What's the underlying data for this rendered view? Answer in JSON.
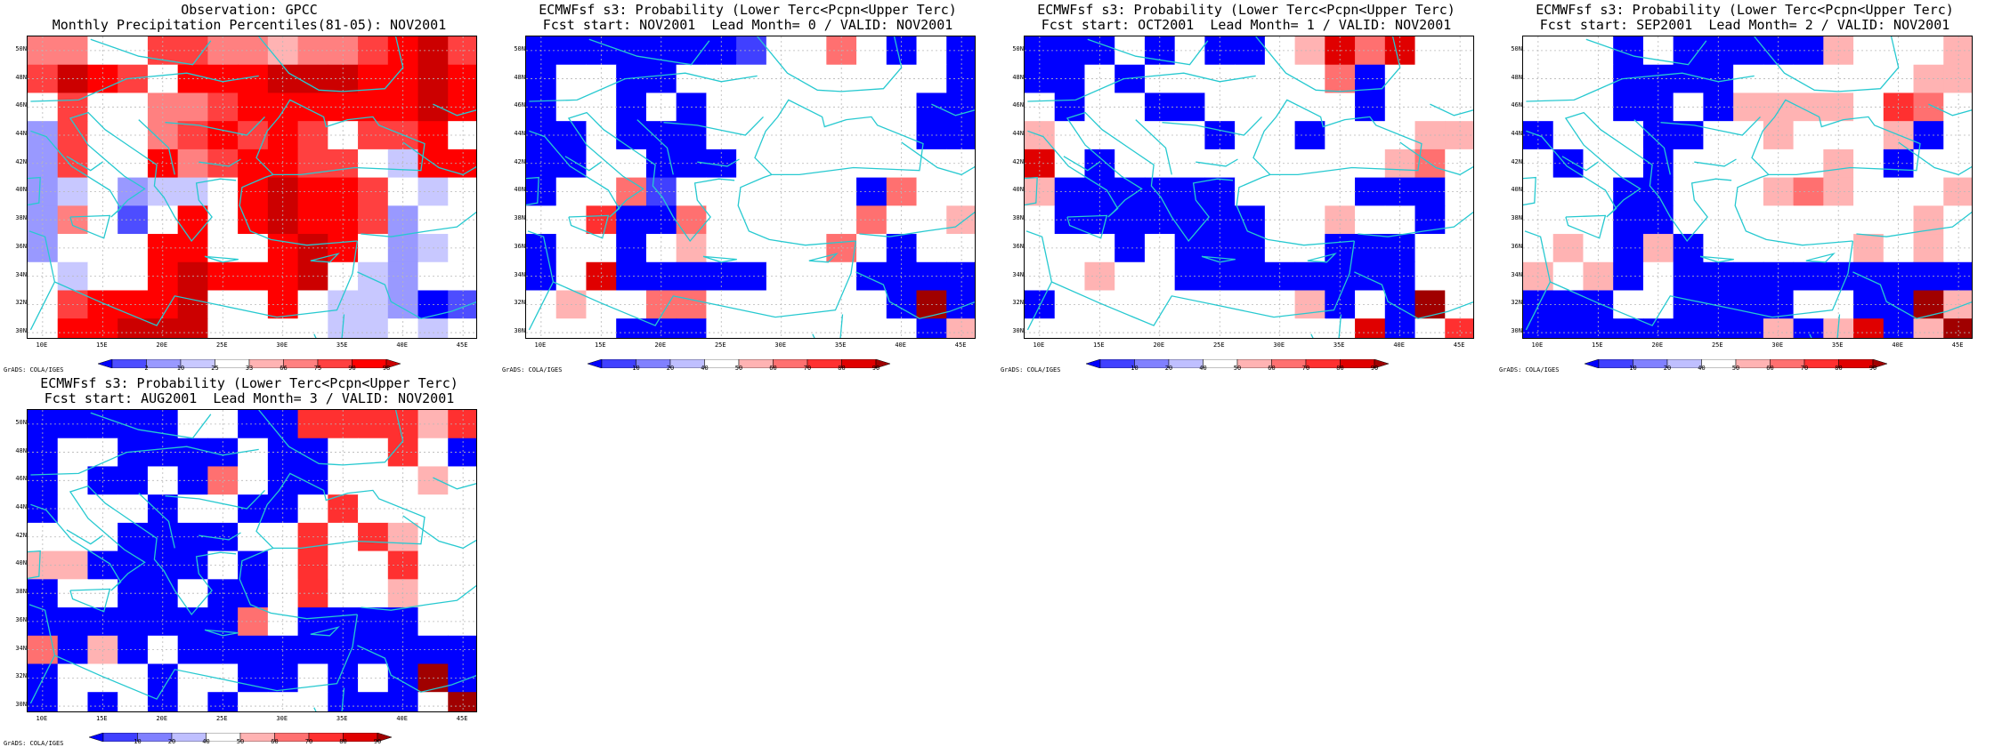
{
  "palette": {
    "ocean_coast": "#27c9d0",
    "grid": "#b8b8b8",
    "obs_scale": [
      "#0000ff",
      "#4d4dff",
      "#9999ff",
      "#c8c8ff",
      "#ffffff",
      "#ffb3b3",
      "#ff8080",
      "#ff4040",
      "#ff0000",
      "#cc0000"
    ],
    "prob_scale": [
      "#0000ff",
      "#4040ff",
      "#8080ff",
      "#bfbfff",
      "#ffffff",
      "#ffb3b3",
      "#ff7070",
      "#ff3030",
      "#e00000",
      "#a00000"
    ]
  },
  "credit": "GrADS: COLA/IGES",
  "axes": {
    "lat_labels": [
      "30N",
      "32N",
      "34N",
      "36N",
      "38N",
      "40N",
      "42N",
      "44N",
      "46N",
      "48N",
      "50N"
    ],
    "lon_labels": [
      "10E",
      "15E",
      "20E",
      "25E",
      "30E",
      "35E",
      "40E",
      "45E"
    ]
  },
  "chart_data": [
    {
      "type": "heatmap",
      "title": "Observation: GPCC",
      "subtitle": "Monthly Precipitation Percentiles(81-05): NOV2001",
      "x_range": [
        8.75,
        46.25
      ],
      "y_range": [
        29.5,
        51.0
      ],
      "colorbar_labels": [
        "2",
        "10",
        "25",
        "33",
        "66",
        "75",
        "90",
        "98"
      ],
      "scale": "obs",
      "grid": [
        [
          6,
          6,
          4,
          4,
          7,
          7,
          6,
          6,
          5,
          6,
          6,
          7,
          8,
          9,
          7
        ],
        [
          7,
          9,
          8,
          7,
          4,
          8,
          8,
          8,
          9,
          9,
          9,
          8,
          8,
          9,
          8
        ],
        [
          4,
          7,
          4,
          4,
          6,
          6,
          7,
          8,
          8,
          8,
          8,
          8,
          8,
          9,
          8
        ],
        [
          2,
          7,
          4,
          4,
          6,
          7,
          8,
          7,
          8,
          7,
          4,
          7,
          7,
          8,
          4
        ],
        [
          2,
          7,
          4,
          4,
          8,
          6,
          7,
          8,
          8,
          7,
          7,
          4,
          3,
          8,
          8
        ],
        [
          2,
          3,
          4,
          2,
          3,
          3,
          4,
          8,
          9,
          8,
          8,
          7,
          4,
          3,
          4
        ],
        [
          2,
          6,
          4,
          1,
          4,
          8,
          4,
          8,
          9,
          8,
          8,
          7,
          2,
          4,
          4
        ],
        [
          2,
          4,
          4,
          4,
          8,
          8,
          4,
          4,
          8,
          9,
          8,
          4,
          2,
          3,
          4
        ],
        [
          4,
          3,
          4,
          4,
          8,
          9,
          8,
          8,
          8,
          9,
          4,
          3,
          2,
          4,
          4
        ],
        [
          4,
          7,
          8,
          8,
          8,
          9,
          4,
          4,
          8,
          4,
          3,
          3,
          2,
          0,
          1
        ],
        [
          4,
          8,
          8,
          9,
          9,
          9,
          4,
          4,
          4,
          4,
          3,
          3,
          4,
          3,
          4
        ]
      ]
    },
    {
      "type": "heatmap",
      "title": "ECMWFsf s3: Probability (Lower Terc<Pcpn<Upper Terc)",
      "subtitle": "Fcst start: NOV2001  Lead Month= 0 / VALID: NOV2001",
      "x_range": [
        8.75,
        46.25
      ],
      "y_range": [
        29.5,
        51.0
      ],
      "colorbar_labels": [
        "10",
        "20",
        "40",
        "50",
        "60",
        "70",
        "80",
        "90"
      ],
      "scale": "prob",
      "grid": [
        [
          0,
          0,
          0,
          0,
          0,
          0,
          0,
          1,
          4,
          4,
          6,
          4,
          0,
          4,
          0
        ],
        [
          0,
          4,
          4,
          0,
          0,
          4,
          4,
          4,
          4,
          4,
          4,
          4,
          4,
          4,
          0
        ],
        [
          0,
          4,
          4,
          0,
          4,
          0,
          4,
          4,
          4,
          4,
          4,
          4,
          4,
          0,
          0
        ],
        [
          0,
          0,
          4,
          0,
          0,
          0,
          4,
          4,
          4,
          4,
          4,
          4,
          4,
          0,
          0
        ],
        [
          0,
          0,
          4,
          4,
          0,
          0,
          0,
          4,
          4,
          4,
          4,
          4,
          4,
          4,
          4
        ],
        [
          0,
          4,
          4,
          6,
          1,
          4,
          4,
          4,
          4,
          4,
          4,
          0,
          6,
          4,
          4
        ],
        [
          4,
          4,
          7,
          0,
          0,
          6,
          4,
          4,
          4,
          4,
          4,
          6,
          4,
          4,
          5
        ],
        [
          0,
          4,
          4,
          0,
          4,
          5,
          4,
          4,
          4,
          4,
          6,
          4,
          0,
          4,
          4
        ],
        [
          0,
          4,
          8,
          0,
          0,
          0,
          0,
          0,
          4,
          4,
          4,
          0,
          0,
          0,
          0
        ],
        [
          4,
          5,
          4,
          4,
          6,
          6,
          4,
          4,
          4,
          4,
          4,
          4,
          0,
          9,
          0
        ],
        [
          4,
          4,
          4,
          0,
          0,
          0,
          4,
          4,
          4,
          4,
          4,
          4,
          4,
          0,
          5
        ]
      ]
    },
    {
      "type": "heatmap",
      "title": "ECMWFsf s3: Probability (Lower Terc<Pcpn<Upper Terc)",
      "subtitle": "Fcst start: OCT2001  Lead Month= 1 / VALID: NOV2001",
      "x_range": [
        8.75,
        46.25
      ],
      "y_range": [
        29.5,
        51.0
      ],
      "colorbar_labels": [
        "10",
        "20",
        "40",
        "50",
        "60",
        "70",
        "80",
        "90"
      ],
      "scale": "prob",
      "grid": [
        [
          0,
          0,
          0,
          4,
          0,
          4,
          0,
          0,
          4,
          5,
          8,
          6,
          8,
          4,
          4
        ],
        [
          0,
          0,
          4,
          0,
          4,
          4,
          4,
          4,
          4,
          4,
          6,
          0,
          4,
          4,
          4
        ],
        [
          4,
          0,
          4,
          4,
          0,
          0,
          4,
          4,
          4,
          4,
          4,
          0,
          4,
          4,
          4
        ],
        [
          5,
          4,
          4,
          4,
          4,
          4,
          0,
          4,
          4,
          0,
          4,
          4,
          4,
          5,
          5
        ],
        [
          8,
          4,
          0,
          4,
          4,
          4,
          4,
          4,
          4,
          4,
          4,
          4,
          5,
          6,
          4
        ],
        [
          5,
          0,
          0,
          0,
          0,
          0,
          0,
          4,
          4,
          4,
          4,
          0,
          0,
          0,
          4
        ],
        [
          4,
          0,
          0,
          0,
          0,
          0,
          0,
          0,
          4,
          4,
          5,
          4,
          4,
          0,
          4
        ],
        [
          4,
          4,
          4,
          0,
          4,
          0,
          0,
          0,
          4,
          4,
          0,
          0,
          0,
          4,
          4
        ],
        [
          4,
          4,
          5,
          4,
          4,
          0,
          0,
          0,
          0,
          0,
          0,
          0,
          0,
          4,
          4
        ],
        [
          0,
          4,
          4,
          4,
          4,
          4,
          4,
          4,
          4,
          5,
          0,
          4,
          0,
          9,
          4
        ],
        [
          4,
          4,
          4,
          4,
          4,
          4,
          4,
          4,
          4,
          4,
          4,
          8,
          0,
          4,
          7
        ]
      ]
    },
    {
      "type": "heatmap",
      "title": "ECMWFsf s3: Probability (Lower Terc<Pcpn<Upper Terc)",
      "subtitle": "Fcst start: SEP2001  Lead Month= 2 / VALID: NOV2001",
      "x_range": [
        8.75,
        46.25
      ],
      "y_range": [
        29.5,
        51.0
      ],
      "colorbar_labels": [
        "10",
        "20",
        "40",
        "50",
        "60",
        "70",
        "80",
        "90"
      ],
      "scale": "prob",
      "grid": [
        [
          4,
          4,
          4,
          0,
          4,
          0,
          0,
          0,
          0,
          0,
          5,
          4,
          4,
          4,
          5
        ],
        [
          4,
          4,
          4,
          0,
          0,
          0,
          0,
          4,
          4,
          4,
          4,
          4,
          4,
          5,
          5
        ],
        [
          4,
          4,
          4,
          0,
          0,
          4,
          0,
          5,
          5,
          5,
          5,
          4,
          7,
          6,
          4
        ],
        [
          0,
          4,
          4,
          4,
          0,
          0,
          4,
          4,
          5,
          4,
          4,
          4,
          5,
          0,
          4
        ],
        [
          4,
          0,
          4,
          4,
          0,
          4,
          4,
          4,
          4,
          4,
          5,
          4,
          0,
          4,
          4
        ],
        [
          4,
          4,
          4,
          0,
          0,
          4,
          4,
          4,
          5,
          6,
          5,
          4,
          4,
          4,
          5
        ],
        [
          4,
          4,
          4,
          0,
          0,
          4,
          4,
          4,
          4,
          4,
          4,
          4,
          4,
          5,
          4
        ],
        [
          4,
          5,
          4,
          0,
          5,
          0,
          4,
          4,
          4,
          4,
          4,
          5,
          4,
          5,
          4
        ],
        [
          5,
          4,
          5,
          0,
          4,
          0,
          0,
          0,
          0,
          0,
          0,
          0,
          0,
          0,
          0
        ],
        [
          0,
          0,
          0,
          4,
          4,
          0,
          0,
          0,
          0,
          4,
          4,
          0,
          0,
          9,
          5
        ],
        [
          0,
          0,
          0,
          0,
          0,
          0,
          0,
          0,
          5,
          0,
          5,
          8,
          0,
          5,
          9
        ]
      ]
    },
    {
      "type": "heatmap",
      "title": "ECMWFsf s3: Probability (Lower Terc<Pcpn<Upper Terc)",
      "subtitle": "Fcst start: AUG2001  Lead Month= 3 / VALID: NOV2001",
      "x_range": [
        8.75,
        46.25
      ],
      "y_range": [
        29.5,
        51.0
      ],
      "colorbar_labels": [
        "10",
        "20",
        "40",
        "50",
        "60",
        "70",
        "80",
        "90"
      ],
      "scale": "prob",
      "grid": [
        [
          0,
          0,
          0,
          0,
          0,
          4,
          4,
          0,
          0,
          7,
          7,
          7,
          7,
          5,
          7
        ],
        [
          0,
          4,
          4,
          0,
          0,
          0,
          0,
          4,
          0,
          0,
          4,
          4,
          7,
          4,
          0
        ],
        [
          0,
          4,
          0,
          0,
          4,
          0,
          6,
          4,
          0,
          0,
          4,
          4,
          4,
          5,
          4
        ],
        [
          0,
          4,
          4,
          4,
          0,
          4,
          4,
          0,
          0,
          4,
          7,
          4,
          4,
          4,
          4
        ],
        [
          4,
          4,
          4,
          0,
          0,
          0,
          0,
          4,
          4,
          7,
          4,
          7,
          5,
          4,
          4
        ],
        [
          5,
          5,
          0,
          0,
          0,
          0,
          4,
          0,
          4,
          7,
          4,
          4,
          7,
          4,
          4
        ],
        [
          0,
          4,
          4,
          0,
          0,
          4,
          0,
          0,
          4,
          7,
          4,
          4,
          5,
          4,
          4
        ],
        [
          0,
          0,
          0,
          0,
          0,
          0,
          0,
          6,
          4,
          0,
          0,
          0,
          0,
          4,
          4
        ],
        [
          6,
          0,
          5,
          0,
          4,
          0,
          0,
          0,
          0,
          0,
          0,
          0,
          0,
          0,
          0
        ],
        [
          0,
          4,
          4,
          4,
          0,
          4,
          4,
          0,
          0,
          4,
          0,
          4,
          0,
          9,
          0
        ],
        [
          0,
          4,
          0,
          4,
          0,
          4,
          0,
          4,
          4,
          4,
          0,
          0,
          0,
          4,
          9
        ]
      ]
    }
  ]
}
